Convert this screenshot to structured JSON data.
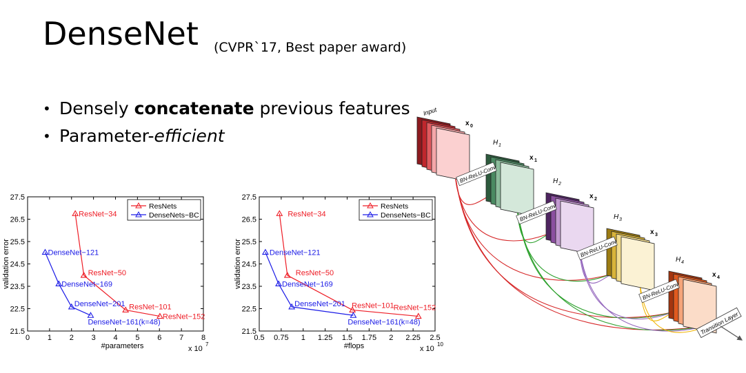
{
  "slide": {
    "title": "DenseNet",
    "subtitle": "(CVPR`17, Best paper award)",
    "bullet1_pre": "Densely ",
    "bullet1_bold": "concatenate",
    "bullet1_post": " previous features",
    "bullet2_pre": "Parameter-",
    "bullet2_italic": "efficient"
  },
  "chart_data": [
    {
      "type": "line",
      "xlabel": "#parameters",
      "ylabel": "validation error",
      "x_multiplier": "x 10",
      "x_exp": "7",
      "xlim": [
        0,
        8
      ],
      "ylim": [
        21.5,
        27.5
      ],
      "xticks": [
        0,
        1,
        2,
        3,
        4,
        5,
        6,
        7,
        8
      ],
      "xtick_labels": [
        "0",
        "1",
        "2",
        "3",
        "4",
        "5",
        "6",
        "7",
        "8"
      ],
      "yticks": [
        21.5,
        22.5,
        23.5,
        24.5,
        25.5,
        26.5,
        27.5
      ],
      "ytick_labels": [
        "21.5",
        "22.5",
        "23.5",
        "24.5",
        "25.5",
        "26.5",
        "27.5"
      ],
      "legend": "top-right",
      "series": [
        {
          "name": "ResNets",
          "color": "#ee1c25",
          "points": [
            [
              2.17,
              26.75
            ],
            [
              2.56,
              23.99
            ],
            [
              4.46,
              22.44
            ],
            [
              6.02,
              22.16
            ]
          ],
          "labels": [
            "ResNet−34",
            "ResNet−50",
            "ResNet−101",
            "ResNet−152"
          ]
        },
        {
          "name": "DenseNets−BC",
          "color": "#1a1ae6",
          "points": [
            [
              0.8,
              25.02
            ],
            [
              1.42,
              23.61
            ],
            [
              2.0,
              22.58
            ],
            [
              2.87,
              22.2
            ]
          ],
          "labels": [
            "DenseNet−121",
            "DenseNet−169",
            "DenseNet−201",
            "DenseNet−161(k=48)"
          ]
        }
      ]
    },
    {
      "type": "line",
      "xlabel": "#flops",
      "ylabel": "validation error",
      "x_multiplier": "x 10",
      "x_exp": "10",
      "xlim": [
        0.5,
        2.5
      ],
      "ylim": [
        21.5,
        27.5
      ],
      "xticks": [
        0.5,
        0.75,
        1,
        1.25,
        1.5,
        1.75,
        2,
        2.25,
        2.5
      ],
      "xtick_labels": [
        "0.5",
        "0.75",
        "1",
        "1.25",
        "1.5",
        "1.75",
        "2",
        "2.25",
        "2.5"
      ],
      "yticks": [
        21.5,
        22.5,
        23.5,
        24.5,
        25.5,
        26.5,
        27.5
      ],
      "ytick_labels": [
        "21.5",
        "22.5",
        "23.5",
        "24.5",
        "25.5",
        "26.5",
        "27.5"
      ],
      "legend": "top-right",
      "series": [
        {
          "name": "ResNets",
          "color": "#ee1c25",
          "points": [
            [
              0.73,
              26.75
            ],
            [
              0.82,
              23.99
            ],
            [
              1.56,
              22.44
            ],
            [
              2.31,
              22.16
            ]
          ],
          "labels": [
            "ResNet−34",
            "ResNet−50",
            "ResNet−101",
            "ResNet−152"
          ]
        },
        {
          "name": "DenseNets−BC",
          "color": "#1a1ae6",
          "points": [
            [
              0.57,
              25.02
            ],
            [
              0.72,
              23.61
            ],
            [
              0.87,
              22.58
            ],
            [
              1.57,
              22.2
            ]
          ],
          "labels": [
            "DenseNet−121",
            "DenseNet−169",
            "DenseNet−201",
            "DenseNet−161(k=48)"
          ]
        }
      ]
    }
  ],
  "diagram": {
    "input_label": "Input",
    "transition_label": "Transition Layer",
    "blocks": [
      {
        "x": "x",
        "sub": "0",
        "h": "",
        "hsub": "",
        "conv": "",
        "colors": [
          "#8c1a1f",
          "#c0272d",
          "#e05a5f",
          "#f4a6a8",
          "#fbd0d0"
        ]
      },
      {
        "x": "x",
        "sub": "1",
        "h": "H",
        "hsub": "1",
        "conv": "BN-ReLU-Conv",
        "colors": [
          "#2d5a3d",
          "#4a8a62",
          "#8cbc9c",
          "#d4e8da"
        ]
      },
      {
        "x": "x",
        "sub": "2",
        "h": "H",
        "hsub": "2",
        "conv": "BN-ReLU-Conv",
        "colors": [
          "#4e2460",
          "#8b4fa0",
          "#c29ad0",
          "#ead8f0"
        ]
      },
      {
        "x": "x",
        "sub": "3",
        "h": "H",
        "hsub": "3",
        "conv": "BN-ReLU-Conv",
        "colors": [
          "#9c7b12",
          "#d9b43a",
          "#f2dc8e",
          "#fbf2d4"
        ]
      },
      {
        "x": "x",
        "sub": "4",
        "h": "H",
        "hsub": "4",
        "conv": "BN-ReLU-Conv",
        "colors": [
          "#a3350f",
          "#e05a1f",
          "#f4a47a",
          "#fbdcc8"
        ]
      }
    ],
    "arrow_colors": [
      "#d62728",
      "#2ca02c",
      "#9467bd",
      "#f0b400"
    ]
  }
}
